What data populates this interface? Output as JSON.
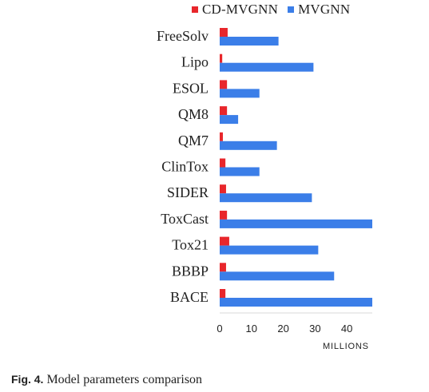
{
  "chart_data": {
    "type": "bar",
    "orientation": "horizontal",
    "categories": [
      "FreeSolv",
      "Lipo",
      "ESOL",
      "QM8",
      "QM7",
      "ClinTox",
      "SIDER",
      "ToxCast",
      "Tox21",
      "BBBP",
      "BACE"
    ],
    "series": [
      {
        "name": "CD-MVGNN",
        "color": "#e8262b",
        "values": [
          2.5,
          0.8,
          2.3,
          2.3,
          1.0,
          1.8,
          2.0,
          2.3,
          3.0,
          2.0,
          1.8
        ]
      },
      {
        "name": "MVGNN",
        "color": "#3b7ee8",
        "values": [
          18.5,
          29.5,
          12.5,
          5.8,
          18.0,
          12.5,
          29.0,
          48.0,
          31.0,
          36.0,
          48.0
        ]
      }
    ],
    "xlim": [
      0,
      48
    ],
    "xticks": [
      0,
      10,
      20,
      30,
      40
    ],
    "xlabel": "MILLIONS",
    "ylabel": "",
    "title": "",
    "grid": false,
    "legend_position": "top"
  },
  "caption": {
    "label": "Fig. 4.",
    "text": " Model parameters comparison"
  }
}
